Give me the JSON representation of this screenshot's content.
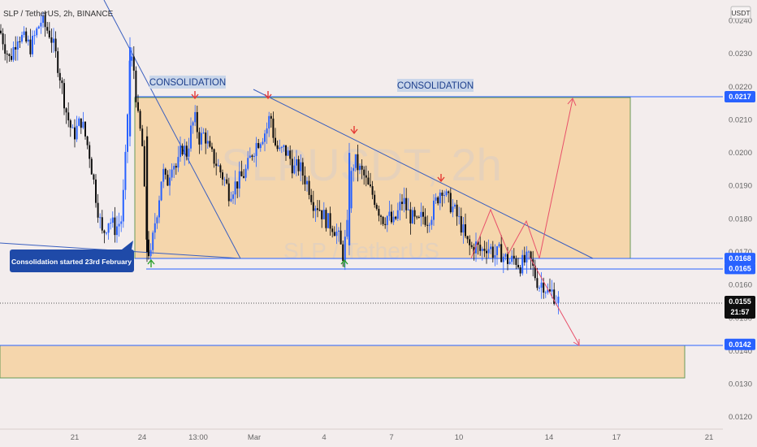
{
  "chart_data": {
    "type": "candlestick",
    "symbol_header": "SLP / TetherUS, 2h, BINANCE",
    "watermark_big": "SLPUSDT, 2h",
    "watermark_small": "SLP / TetherUS",
    "currency_badge": "USDT",
    "y_ticks": [
      "0.0240",
      "0.0230",
      "0.0220",
      "0.0210",
      "0.0200",
      "0.0190",
      "0.0180",
      "0.0170",
      "0.0160",
      "0.0150",
      "0.0140",
      "0.0130",
      "0.0120"
    ],
    "x_ticks": [
      "21",
      "24",
      "13:00",
      "Mar",
      "4",
      "7",
      "10",
      "14",
      "17",
      "21"
    ],
    "price_tags": [
      {
        "value": 0.0217,
        "label": "0.0217",
        "style": "blue"
      },
      {
        "value": 0.0168,
        "label": "0.0168",
        "style": "blue"
      },
      {
        "value": 0.0165,
        "label": "0.0165",
        "style": "blue"
      },
      {
        "value": 0.0142,
        "label": "0.0142",
        "style": "blue"
      },
      {
        "value": 0.0155,
        "label": "0.0155",
        "style": "dark"
      }
    ],
    "countdown": "21:57",
    "annotations": {
      "consolidation_left": "CONSOLIDATION",
      "consolidation_right": "CONSOLIDATION",
      "started_note": "Consolidation started 23rd February"
    },
    "zones": [
      {
        "name": "consolidation-zone",
        "high": 0.0217,
        "low": 0.0168,
        "color": "#f5d6ac"
      },
      {
        "name": "support-zone",
        "high": 0.0142,
        "low": 0.0132,
        "color": "#f5d6ac"
      }
    ],
    "levels": [
      0.0217,
      0.0168,
      0.0165,
      0.0142
    ],
    "last_price": 0.0155,
    "colors": {
      "up": "#2962ff",
      "down": "#0d0d0d",
      "zone": "#f5d6ac",
      "trendline": "#3a5fbf",
      "projection": "#e8506a",
      "tag_blue": "#2962ff",
      "tag_dark": "#0e0e0e",
      "up_arrow": "#2ca02c",
      "down_arrow": "#e53935"
    },
    "path": [
      [
        0,
        0.0237
      ],
      [
        12,
        0.0228
      ],
      [
        22,
        0.0236
      ],
      [
        38,
        0.0232
      ],
      [
        50,
        0.024
      ],
      [
        62,
        0.0236
      ],
      [
        72,
        0.0226
      ],
      [
        82,
        0.0212
      ],
      [
        90,
        0.0205
      ],
      [
        100,
        0.021
      ],
      [
        110,
        0.02
      ],
      [
        118,
        0.0187
      ],
      [
        126,
        0.0175
      ],
      [
        134,
        0.018
      ],
      [
        142,
        0.0177
      ],
      [
        150,
        0.018
      ],
      [
        155,
        0.02
      ],
      [
        160,
        0.023
      ],
      [
        165,
        0.0225
      ],
      [
        170,
        0.021
      ],
      [
        175,
        0.0203
      ],
      [
        180,
        0.0175
      ],
      [
        185,
        0.0167
      ],
      [
        190,
        0.0178
      ],
      [
        195,
        0.0185
      ],
      [
        200,
        0.0195
      ],
      [
        205,
        0.019
      ],
      [
        212,
        0.0198
      ],
      [
        218,
        0.0195
      ],
      [
        224,
        0.0202
      ],
      [
        230,
        0.02
      ],
      [
        236,
        0.0208
      ],
      [
        240,
        0.021
      ],
      [
        246,
        0.0204
      ],
      [
        252,
        0.0206
      ],
      [
        258,
        0.02
      ],
      [
        264,
        0.0198
      ],
      [
        270,
        0.0195
      ],
      [
        276,
        0.0192
      ],
      [
        282,
        0.0188
      ],
      [
        288,
        0.019
      ],
      [
        296,
        0.0192
      ],
      [
        304,
        0.0195
      ],
      [
        310,
        0.02
      ],
      [
        316,
        0.0203
      ],
      [
        322,
        0.0205
      ],
      [
        328,
        0.0207
      ],
      [
        333,
        0.0212
      ],
      [
        338,
        0.0203
      ],
      [
        344,
        0.02
      ],
      [
        350,
        0.0201
      ],
      [
        356,
        0.0199
      ],
      [
        362,
        0.0195
      ],
      [
        368,
        0.0196
      ],
      [
        374,
        0.0193
      ],
      [
        380,
        0.019
      ],
      [
        386,
        0.0185
      ],
      [
        392,
        0.0184
      ],
      [
        398,
        0.0181
      ],
      [
        404,
        0.0179
      ],
      [
        410,
        0.0178
      ],
      [
        416,
        0.0175
      ],
      [
        422,
        0.0169
      ],
      [
        428,
        0.0178
      ],
      [
        432,
        0.0192
      ],
      [
        436,
        0.0198
      ],
      [
        442,
        0.0195
      ],
      [
        448,
        0.0193
      ],
      [
        454,
        0.0189
      ],
      [
        460,
        0.0187
      ],
      [
        466,
        0.0183
      ],
      [
        472,
        0.018
      ],
      [
        478,
        0.0181
      ],
      [
        484,
        0.0178
      ],
      [
        490,
        0.0182
      ],
      [
        496,
        0.0186
      ],
      [
        502,
        0.0182
      ],
      [
        508,
        0.018
      ],
      [
        514,
        0.0178
      ],
      [
        520,
        0.0181
      ],
      [
        526,
        0.018
      ],
      [
        532,
        0.0182
      ],
      [
        538,
        0.0186
      ],
      [
        544,
        0.019
      ],
      [
        550,
        0.0186
      ],
      [
        556,
        0.0184
      ],
      [
        562,
        0.0181
      ],
      [
        568,
        0.0178
      ],
      [
        574,
        0.0173
      ],
      [
        580,
        0.0171
      ],
      [
        586,
        0.0172
      ],
      [
        592,
        0.017
      ],
      [
        598,
        0.0172
      ],
      [
        604,
        0.0171
      ],
      [
        610,
        0.0169
      ],
      [
        616,
        0.017
      ],
      [
        622,
        0.0168
      ],
      [
        628,
        0.0167
      ],
      [
        634,
        0.0168
      ],
      [
        640,
        0.0166
      ],
      [
        646,
        0.0167
      ],
      [
        652,
        0.0168
      ],
      [
        656,
        0.0165
      ],
      [
        660,
        0.0162
      ],
      [
        664,
        0.016
      ],
      [
        668,
        0.0161
      ],
      [
        672,
        0.0159
      ],
      [
        676,
        0.0157
      ],
      [
        680,
        0.0158
      ],
      [
        684,
        0.0156
      ],
      [
        688,
        0.0155
      ]
    ],
    "big_moves": [
      {
        "t": 160,
        "from": 0.0205,
        "to": 0.0232
      },
      {
        "t": 181,
        "from": 0.0205,
        "to": 0.017
      },
      {
        "t": 430,
        "from": 0.0172,
        "to": 0.02
      }
    ]
  }
}
